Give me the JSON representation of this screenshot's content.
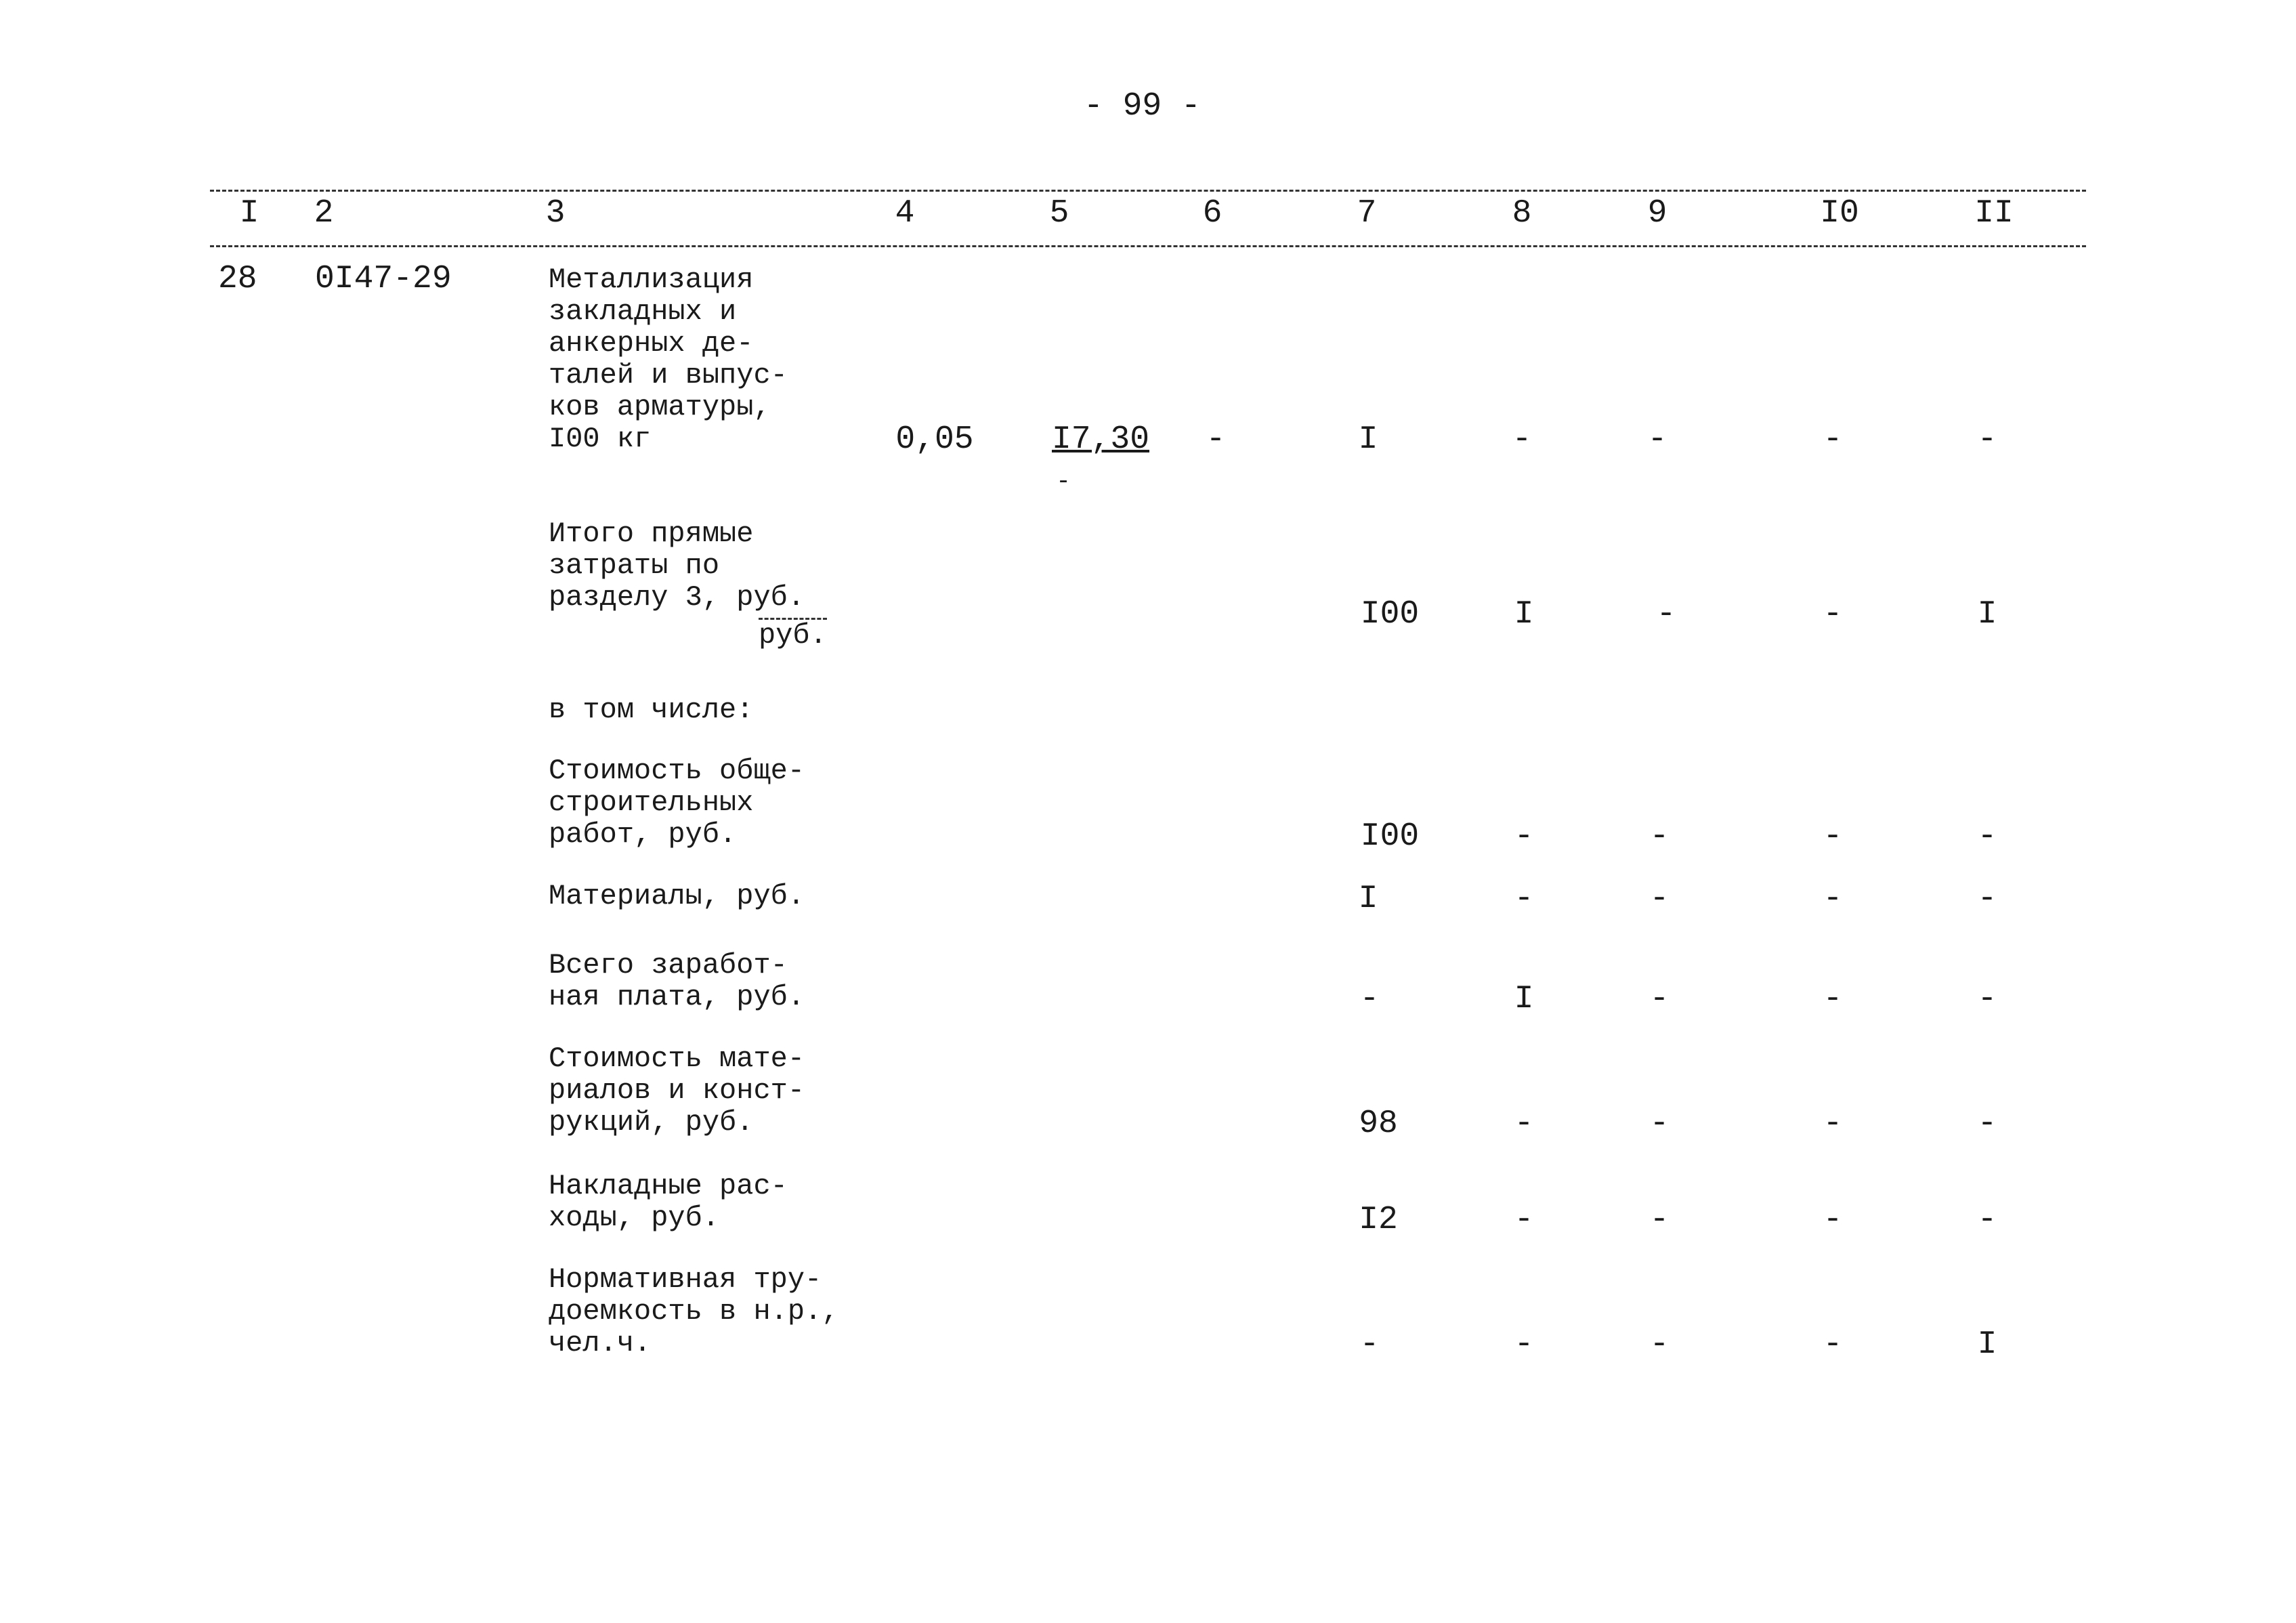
{
  "page_number": "- 99 -",
  "columns": [
    "I",
    "2",
    "3",
    "4",
    "5",
    "6",
    "7",
    "8",
    "9",
    "I0",
    "II"
  ],
  "item": {
    "no": "28",
    "code": "0I47-29",
    "description": "Металлизация\nзакладных и\nанкерных де-\nталей и выпус-\nков арматуры,\nI00 кг",
    "values": [
      "0,05",
      "I7,30",
      "-",
      "I",
      "-",
      "-",
      "-",
      "-"
    ],
    "subnote": "-"
  },
  "total": {
    "description": "Итого прямые\nзатраты по\nразделу 3, руб.",
    "unit_fraction": "руб.",
    "values": [
      "I00",
      "I",
      "-",
      "-",
      "I"
    ]
  },
  "including_label": "в том числе:",
  "breakdown": [
    {
      "description": "Стоимость обще-\nстроительных\nработ, руб.",
      "values": [
        "I00",
        "-",
        "-",
        "-",
        "-"
      ]
    },
    {
      "description": "Материалы, руб.",
      "values": [
        "I",
        "-",
        "-",
        "-",
        "-"
      ]
    },
    {
      "description": "Всего заработ-\nная плата, руб.",
      "values": [
        "-",
        "I",
        "-",
        "-",
        "-"
      ]
    },
    {
      "description": "Стоимость мате-\nриалов и конст-\nрукций, руб.",
      "values": [
        "98",
        "-",
        "-",
        "-",
        "-"
      ]
    },
    {
      "description": "Накладные рас-\nходы, руб.",
      "values": [
        "I2",
        "-",
        "-",
        "-",
        "-"
      ]
    },
    {
      "description": "Нормативная тру-\nдоемкость в н.р.,\nчел.ч.",
      "values": [
        "-",
        "-",
        "-",
        "-",
        "I"
      ]
    }
  ]
}
